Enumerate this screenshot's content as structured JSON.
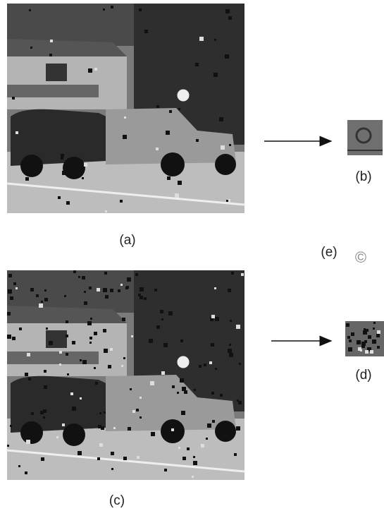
{
  "panels": [
    {
      "label": "(a)"
    },
    {
      "label": "(b)"
    },
    {
      "label": "(c)"
    },
    {
      "label": "(d)"
    },
    {
      "label": "(e)"
    }
  ],
  "watermark": "©"
}
